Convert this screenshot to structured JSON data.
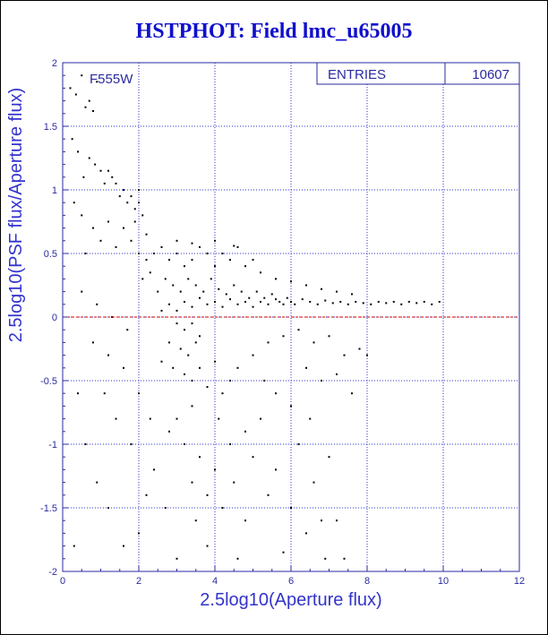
{
  "chart_data": {
    "type": "scatter",
    "title": "HSTPHOT: Field lmc_u65005",
    "xlabel": "2.5log10(Aperture flux)",
    "ylabel": "2.5log10(PSF flux/Aperture flux)",
    "xlim": [
      0,
      12
    ],
    "ylim": [
      -2,
      2
    ],
    "x_ticks": [
      "0",
      "2",
      "4",
      "6",
      "8",
      "10",
      "12"
    ],
    "y_ticks": [
      "-2",
      "-1.5",
      "-1",
      "-0.5",
      "0",
      "0.5",
      "1",
      "1.5",
      "2"
    ],
    "grid": true,
    "annotation": "F555W",
    "stats": {
      "label": "ENTRIES",
      "value": "10607"
    },
    "reference_line": {
      "y": 0,
      "style": "dashed",
      "color": "#cc0000"
    },
    "colors": {
      "frame": "#000000",
      "axes": "#2a2aa0",
      "grid": "#3333cc",
      "points": "#000000",
      "title": "#1010cc"
    },
    "points": [
      [
        0.2,
        1.8
      ],
      [
        0.35,
        1.75
      ],
      [
        0.5,
        1.9
      ],
      [
        0.6,
        1.65
      ],
      [
        0.7,
        1.7
      ],
      [
        0.8,
        1.62
      ],
      [
        0.9,
        1.85
      ],
      [
        0.25,
        1.4
      ],
      [
        0.4,
        1.3
      ],
      [
        0.55,
        1.1
      ],
      [
        0.7,
        1.25
      ],
      [
        0.85,
        1.2
      ],
      [
        1.0,
        1.15
      ],
      [
        1.1,
        1.05
      ],
      [
        1.2,
        1.15
      ],
      [
        1.3,
        1.1
      ],
      [
        1.4,
        1.05
      ],
      [
        1.5,
        0.95
      ],
      [
        1.6,
        1.0
      ],
      [
        1.7,
        0.9
      ],
      [
        1.8,
        0.95
      ],
      [
        1.9,
        0.85
      ],
      [
        2.0,
        0.9
      ],
      [
        2.1,
        0.8
      ],
      [
        0.3,
        0.9
      ],
      [
        0.5,
        0.8
      ],
      [
        0.6,
        0.5
      ],
      [
        0.8,
        0.7
      ],
      [
        1.0,
        0.6
      ],
      [
        1.2,
        0.75
      ],
      [
        1.4,
        0.55
      ],
      [
        1.6,
        0.7
      ],
      [
        1.8,
        0.6
      ],
      [
        2.0,
        0.5
      ],
      [
        2.2,
        0.45
      ],
      [
        2.4,
        0.5
      ],
      [
        2.6,
        0.55
      ],
      [
        2.8,
        0.45
      ],
      [
        3.0,
        0.5
      ],
      [
        3.2,
        0.4
      ],
      [
        3.4,
        0.45
      ],
      [
        3.6,
        0.55
      ],
      [
        3.8,
        0.5
      ],
      [
        4.0,
        0.4
      ],
      [
        4.2,
        0.5
      ],
      [
        4.4,
        0.45
      ],
      [
        4.6,
        0.55
      ],
      [
        4.8,
        0.4
      ],
      [
        2.1,
        0.3
      ],
      [
        2.3,
        0.35
      ],
      [
        2.5,
        0.2
      ],
      [
        2.7,
        0.3
      ],
      [
        2.9,
        0.25
      ],
      [
        3.1,
        0.2
      ],
      [
        3.3,
        0.3
      ],
      [
        3.5,
        0.25
      ],
      [
        3.7,
        0.2
      ],
      [
        3.9,
        0.3
      ],
      [
        4.1,
        0.22
      ],
      [
        4.3,
        0.18
      ],
      [
        4.5,
        0.25
      ],
      [
        4.7,
        0.2
      ],
      [
        4.9,
        0.15
      ],
      [
        5.1,
        0.2
      ],
      [
        5.3,
        0.15
      ],
      [
        5.5,
        0.18
      ],
      [
        5.7,
        0.12
      ],
      [
        5.9,
        0.15
      ],
      [
        6.1,
        0.1
      ],
      [
        6.3,
        0.14
      ],
      [
        6.5,
        0.12
      ],
      [
        6.7,
        0.1
      ],
      [
        6.9,
        0.13
      ],
      [
        7.1,
        0.11
      ],
      [
        7.3,
        0.12
      ],
      [
        7.5,
        0.1
      ],
      [
        7.7,
        0.12
      ],
      [
        7.9,
        0.11
      ],
      [
        8.1,
        0.1
      ],
      [
        8.3,
        0.12
      ],
      [
        8.5,
        0.11
      ],
      [
        8.7,
        0.12
      ],
      [
        8.9,
        0.1
      ],
      [
        9.1,
        0.12
      ],
      [
        9.3,
        0.11
      ],
      [
        9.5,
        0.12
      ],
      [
        9.7,
        0.1
      ],
      [
        9.9,
        0.12
      ],
      [
        2.6,
        0.05
      ],
      [
        2.8,
        0.1
      ],
      [
        3.0,
        0.05
      ],
      [
        3.2,
        0.12
      ],
      [
        3.4,
        0.08
      ],
      [
        3.6,
        0.15
      ],
      [
        3.8,
        0.1
      ],
      [
        4.0,
        0.12
      ],
      [
        4.2,
        0.08
      ],
      [
        4.4,
        0.14
      ],
      [
        4.6,
        0.1
      ],
      [
        4.8,
        0.12
      ],
      [
        5.0,
        0.08
      ],
      [
        5.2,
        0.12
      ],
      [
        5.4,
        0.1
      ],
      [
        5.6,
        0.14
      ],
      [
        5.8,
        0.1
      ],
      [
        6.0,
        0.12
      ],
      [
        3.0,
        -0.05
      ],
      [
        3.2,
        -0.1
      ],
      [
        3.4,
        -0.05
      ],
      [
        3.6,
        -0.15
      ],
      [
        2.8,
        -0.2
      ],
      [
        3.1,
        -0.25
      ],
      [
        3.3,
        -0.3
      ],
      [
        3.5,
        -0.2
      ],
      [
        2.6,
        -0.35
      ],
      [
        2.9,
        -0.4
      ],
      [
        3.2,
        -0.45
      ],
      [
        3.4,
        -0.5
      ],
      [
        3.6,
        -0.4
      ],
      [
        3.8,
        -0.55
      ],
      [
        4.0,
        -0.35
      ],
      [
        4.2,
        -0.6
      ],
      [
        4.4,
        -0.5
      ],
      [
        4.6,
        -0.4
      ],
      [
        5.0,
        -0.3
      ],
      [
        5.4,
        -0.2
      ],
      [
        5.8,
        -0.15
      ],
      [
        6.2,
        -0.1
      ],
      [
        6.6,
        -0.2
      ],
      [
        7.0,
        -0.15
      ],
      [
        7.4,
        -0.3
      ],
      [
        7.8,
        -0.25
      ],
      [
        6.4,
        -0.4
      ],
      [
        6.8,
        -0.5
      ],
      [
        7.2,
        -0.45
      ],
      [
        5.6,
        -0.6
      ],
      [
        6.0,
        -0.7
      ],
      [
        5.2,
        -0.8
      ],
      [
        4.8,
        -0.9
      ],
      [
        3.4,
        -0.7
      ],
      [
        3.0,
        -0.8
      ],
      [
        2.8,
        -0.9
      ],
      [
        3.2,
        -1.0
      ],
      [
        3.6,
        -1.1
      ],
      [
        4.0,
        -1.2
      ],
      [
        4.4,
        -1.0
      ],
      [
        5.0,
        -1.1
      ],
      [
        5.6,
        -1.2
      ],
      [
        6.2,
        -1.0
      ],
      [
        6.6,
        -1.3
      ],
      [
        7.0,
        -1.1
      ],
      [
        3.4,
        -1.3
      ],
      [
        3.8,
        -1.4
      ],
      [
        4.2,
        -1.5
      ],
      [
        4.8,
        -1.6
      ],
      [
        5.4,
        -1.4
      ],
      [
        6.0,
        -1.5
      ],
      [
        6.4,
        -1.7
      ],
      [
        6.8,
        -1.6
      ],
      [
        2.4,
        -1.2
      ],
      [
        2.0,
        -0.6
      ],
      [
        1.6,
        -0.4
      ],
      [
        1.2,
        -0.3
      ],
      [
        0.8,
        -0.2
      ],
      [
        1.4,
        -0.8
      ],
      [
        1.8,
        -1.0
      ],
      [
        2.2,
        -1.4
      ],
      [
        2.0,
        -1.7
      ],
      [
        1.2,
        -1.5
      ],
      [
        1.6,
        -1.8
      ],
      [
        3.0,
        -1.9
      ],
      [
        3.8,
        -1.8
      ],
      [
        4.6,
        -1.9
      ],
      [
        5.8,
        -1.85
      ],
      [
        7.4,
        -1.9
      ],
      [
        0.5,
        0.2
      ],
      [
        0.9,
        0.1
      ],
      [
        1.3,
        0.0
      ],
      [
        1.7,
        -0.1
      ],
      [
        0.4,
        -0.6
      ],
      [
        0.6,
        -1.0
      ],
      [
        0.9,
        -1.3
      ],
      [
        0.3,
        -1.8
      ],
      [
        1.1,
        -0.6
      ],
      [
        2.3,
        -0.8
      ],
      [
        2.7,
        -1.5
      ],
      [
        3.5,
        -1.6
      ],
      [
        4.1,
        -0.8
      ],
      [
        4.5,
        -1.3
      ],
      [
        5.3,
        -0.5
      ],
      [
        6.5,
        -0.8
      ],
      [
        7.6,
        -0.6
      ],
      [
        8.0,
        -0.3
      ],
      [
        7.2,
        -1.6
      ],
      [
        6.9,
        -1.9
      ],
      [
        2.0,
        1.0
      ],
      [
        1.9,
        0.75
      ],
      [
        2.2,
        0.65
      ],
      [
        3.0,
        0.6
      ],
      [
        3.4,
        0.58
      ],
      [
        4.0,
        0.6
      ],
      [
        4.5,
        0.56
      ],
      [
        5.0,
        0.45
      ],
      [
        5.2,
        0.35
      ],
      [
        5.6,
        0.3
      ],
      [
        6.0,
        0.28
      ],
      [
        6.4,
        0.25
      ],
      [
        6.8,
        0.22
      ],
      [
        7.2,
        0.2
      ],
      [
        7.6,
        0.18
      ]
    ]
  }
}
